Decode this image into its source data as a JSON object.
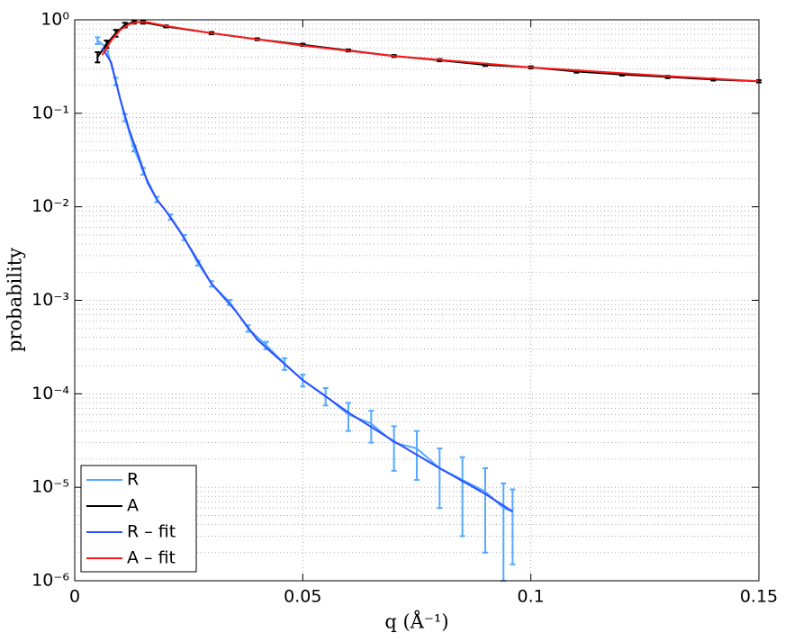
{
  "chart_data": {
    "type": "line",
    "log_y": true,
    "grid": true,
    "minor_grid": true,
    "legend": "lower left",
    "xlabel": "q (Å⁻¹)",
    "ylabel": "probability",
    "xlim": [
      0,
      0.15
    ],
    "xticks": [
      0,
      0.05,
      0.1,
      0.15
    ],
    "ylim": [
      1e-06,
      1
    ],
    "yticks": [
      {
        "value": 1e-06,
        "label": "10⁻⁶"
      },
      {
        "value": 1e-05,
        "label": "10⁻⁵"
      },
      {
        "value": 0.0001,
        "label": "10⁻⁴"
      },
      {
        "value": 0.001,
        "label": "10⁻³"
      },
      {
        "value": 0.01,
        "label": "10⁻²"
      },
      {
        "value": 0.1,
        "label": "10⁻¹"
      },
      {
        "value": 1,
        "label": "10⁰"
      }
    ],
    "series": [
      {
        "name": "R",
        "color": "#55aaff",
        "x": [
          0.005,
          0.007,
          0.009,
          0.011,
          0.013,
          0.015,
          0.018,
          0.021,
          0.024,
          0.027,
          0.03,
          0.034,
          0.038,
          0.042,
          0.046,
          0.05,
          0.055,
          0.06,
          0.065,
          0.07,
          0.075,
          0.08,
          0.085,
          0.09,
          0.094,
          0.096
        ],
        "values": [
          0.6,
          0.5,
          0.22,
          0.09,
          0.042,
          0.024,
          0.012,
          0.0078,
          0.0047,
          0.0025,
          0.0015,
          0.00095,
          0.0005,
          0.00033,
          0.00021,
          0.00014,
          9.5e-05,
          6e-05,
          4.8e-05,
          3e-05,
          2.6e-05,
          1.6e-05,
          1.2e-05,
          9e-06,
          6e-06,
          5.5e-06
        ],
        "errors": [
          0.05,
          0.04,
          0.02,
          0.008,
          0.003,
          0.002,
          0.0008,
          0.0005,
          0.0003,
          0.00015,
          0.0001,
          6e-05,
          4e-05,
          3e-05,
          3e-05,
          2e-05,
          2e-05,
          2e-05,
          1.8e-05,
          1.5e-05,
          1.4e-05,
          1e-05,
          9e-06,
          7e-06,
          5e-06,
          4e-06
        ]
      },
      {
        "name": "A",
        "color": "#000000",
        "x": [
          0.005,
          0.007,
          0.009,
          0.011,
          0.013,
          0.015,
          0.02,
          0.03,
          0.04,
          0.05,
          0.06,
          0.07,
          0.08,
          0.09,
          0.1,
          0.11,
          0.12,
          0.13,
          0.14,
          0.15
        ],
        "values": [
          0.4,
          0.55,
          0.72,
          0.88,
          0.95,
          0.94,
          0.85,
          0.72,
          0.62,
          0.54,
          0.47,
          0.41,
          0.37,
          0.33,
          0.31,
          0.28,
          0.26,
          0.245,
          0.23,
          0.22
        ],
        "errors": [
          0.05,
          0.05,
          0.06,
          0.05,
          0.04,
          0.03,
          0.02,
          0.02,
          0.015,
          0.015,
          0.012,
          0.01,
          0.01,
          0.009,
          0.008,
          0.008,
          0.007,
          0.007,
          0.006,
          0.006
        ]
      },
      {
        "name": "R – fit",
        "color": "#2a4fff",
        "x": [
          0.006,
          0.008,
          0.01,
          0.012,
          0.014,
          0.016,
          0.018,
          0.02,
          0.023,
          0.026,
          0.03,
          0.035,
          0.04,
          0.045,
          0.05,
          0.06,
          0.07,
          0.08,
          0.09,
          0.096
        ],
        "values": [
          0.5,
          0.35,
          0.14,
          0.065,
          0.035,
          0.018,
          0.012,
          0.009,
          0.0055,
          0.0032,
          0.0015,
          0.0008,
          0.00038,
          0.00023,
          0.00014,
          6.3e-05,
          3.1e-05,
          1.6e-05,
          8.5e-06,
          5.5e-06
        ]
      },
      {
        "name": "A – fit",
        "color": "#ff1a1a",
        "x": [
          0.006,
          0.008,
          0.01,
          0.012,
          0.014,
          0.016,
          0.02,
          0.03,
          0.05,
          0.07,
          0.1,
          0.13,
          0.15
        ],
        "values": [
          0.42,
          0.6,
          0.78,
          0.9,
          0.95,
          0.94,
          0.86,
          0.72,
          0.53,
          0.41,
          0.31,
          0.25,
          0.22
        ]
      }
    ]
  }
}
